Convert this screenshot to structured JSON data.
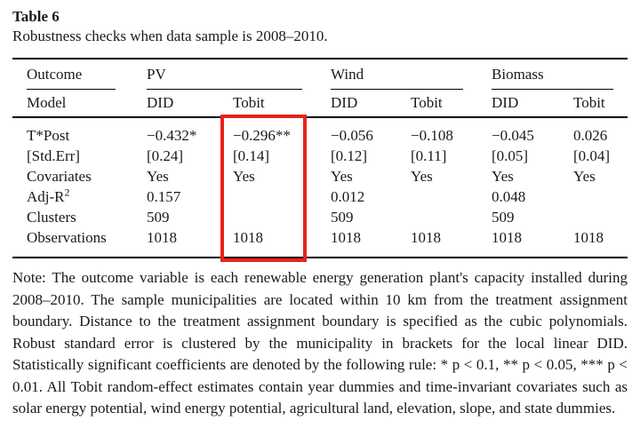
{
  "table": {
    "label": "Table 6",
    "caption": "Robustness checks when data sample is 2008–2010.",
    "header": {
      "outcome_label": "Outcome",
      "model_label": "Model",
      "groups": [
        {
          "label": "PV"
        },
        {
          "label": "Wind"
        },
        {
          "label": "Biomass"
        }
      ],
      "model_cols": [
        "DID",
        "Tobit",
        "DID",
        "Tobit",
        "DID",
        "Tobit"
      ]
    },
    "rows": [
      {
        "label": "T*Post",
        "cells": [
          "−0.432*",
          "−0.296**",
          "−0.056",
          "−0.108",
          "−0.045",
          "0.026"
        ]
      },
      {
        "label": "[Std.Err]",
        "cells": [
          "[0.24]",
          "[0.14]",
          "[0.12]",
          "[0.11]",
          "[0.05]",
          "[0.04]"
        ]
      },
      {
        "label": "Covariates",
        "cells": [
          "Yes",
          "Yes",
          "Yes",
          "Yes",
          "Yes",
          "Yes"
        ]
      },
      {
        "label": "Adj-R²",
        "cells": [
          "0.157",
          "",
          "0.012",
          "",
          "0.048",
          ""
        ]
      },
      {
        "label": "Clusters",
        "cells": [
          "509",
          "",
          "509",
          "",
          "509",
          ""
        ]
      },
      {
        "label": "Observations",
        "cells": [
          "1018",
          "1018",
          "1018",
          "1018",
          "1018",
          "1018"
        ]
      }
    ],
    "note": "Note: The outcome variable is each renewable energy generation plant's capacity installed during 2008–2010. The sample municipalities are located within 10 km from the treatment assignment boundary. Distance to the treatment assignment boundary is specified as the cubic polynomials. Robust standard error is clustered by the municipality in brackets for the local linear DID. Statistically significant coefficients are denoted by the following rule: * p < 0.1, ** p < 0.05, *** p < 0.01. All Tobit random-effect estimates contain year dummies and time-invariant covariates such as solar energy potential, wind energy potential, agricultural land, elevation, slope, and state dummies."
  },
  "highlight": {
    "target_column": "PV Tobit",
    "color": "#e8231d"
  },
  "colors": {
    "text": "#1a1a1a",
    "rule": "#000000",
    "background": "#ffffff"
  }
}
